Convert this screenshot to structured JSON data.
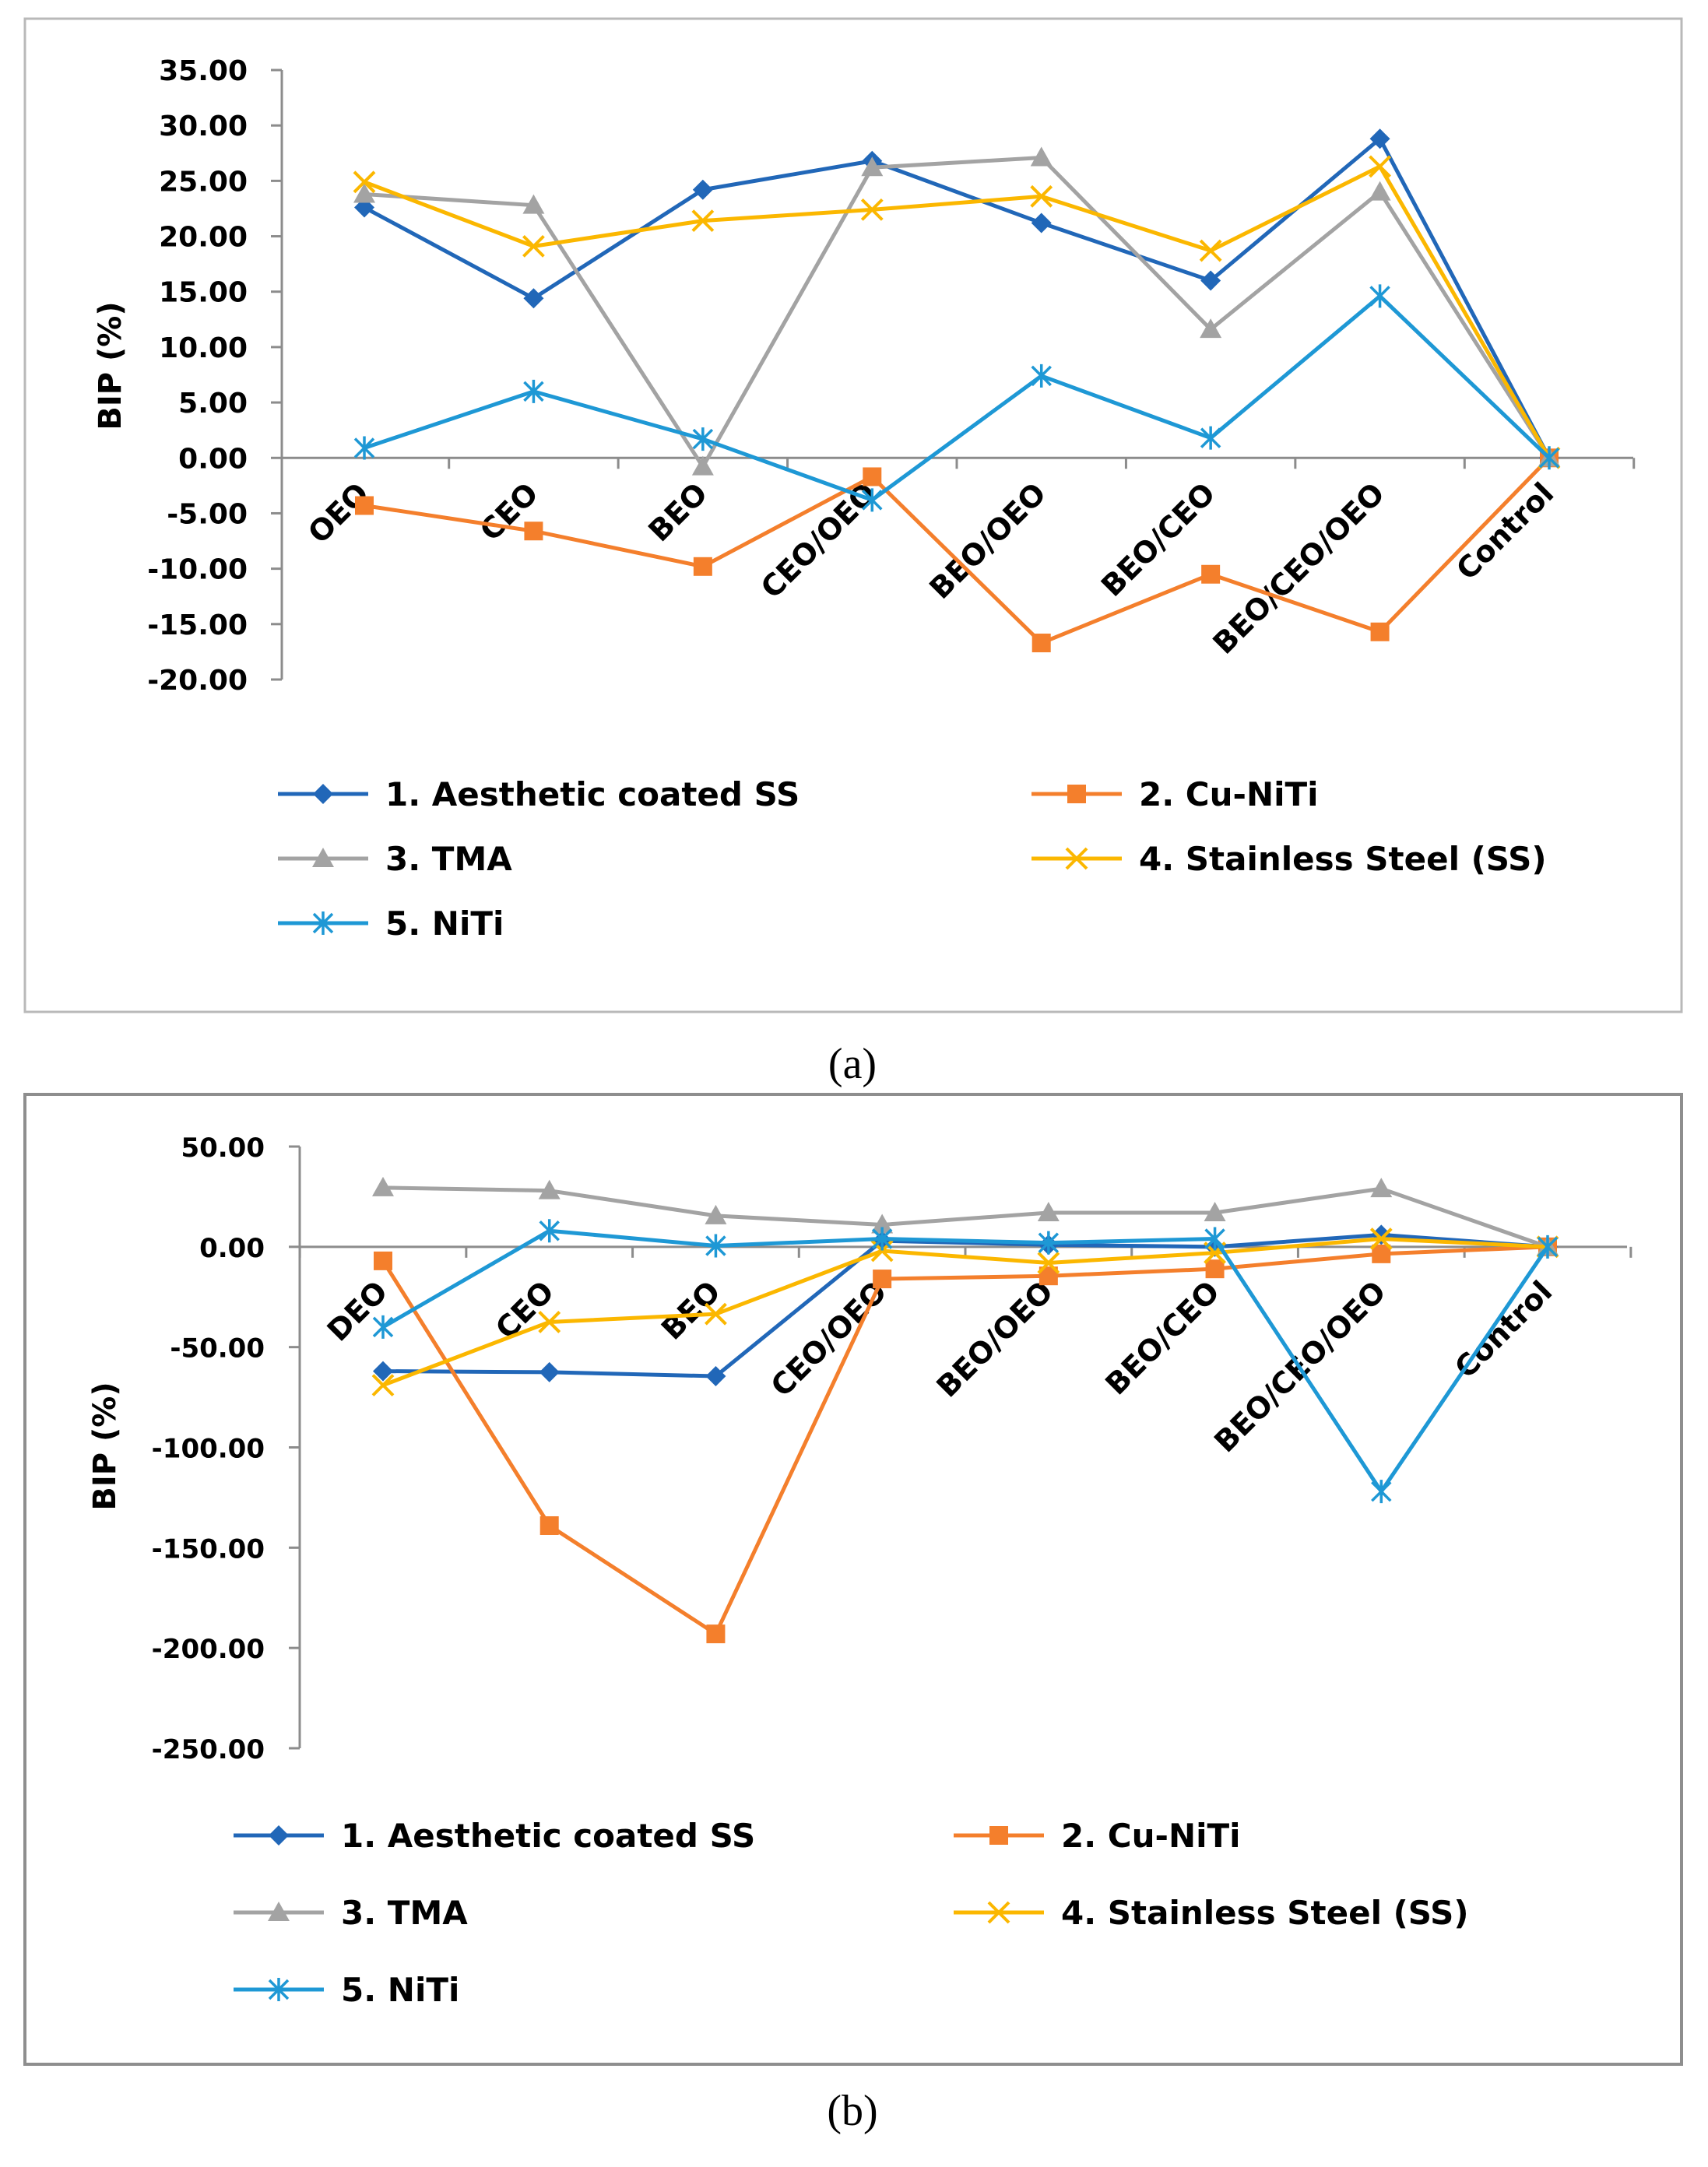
{
  "colors": {
    "aesthetic": "#2167b8",
    "cuniti": "#f47f2c",
    "tma": "#a3a3a3",
    "ss": "#fbb700",
    "niti": "#1e98d5",
    "frame_a": "#b9b9b9",
    "frame_b": "#8e8e8e",
    "axis": "#8c8c8c"
  },
  "chart_data": [
    {
      "id": "a",
      "type": "line",
      "caption": "(a)",
      "ylabel": "BIP (%)",
      "xlabel": "",
      "ylim": [
        -20,
        35
      ],
      "ytick_values": [
        35,
        30,
        25,
        20,
        15,
        10,
        5,
        0,
        -5,
        -10,
        -15,
        -20
      ],
      "ytick_labels": [
        "35.00",
        "30.00",
        "25.00",
        "20.00",
        "15.00",
        "10.00",
        "5.00",
        "0.00",
        "-5.00",
        "-10.00",
        "-15.00",
        "-20.00"
      ],
      "categories": [
        "OEO",
        "CEO",
        "BEO",
        "CEO/OEO",
        "BEO/OEO",
        "BEO/CEO",
        "BEO/CEO/OEO",
        "Control"
      ],
      "grid": false,
      "legend_position": "bottom",
      "series": [
        {
          "name": "1. Aesthetic coated SS",
          "color_key": "aesthetic",
          "marker": "diamond",
          "values": [
            22.6,
            14.4,
            24.2,
            26.8,
            21.2,
            16.0,
            28.8,
            0.0
          ]
        },
        {
          "name": "2. Cu-NiTi",
          "color_key": "cuniti",
          "marker": "square",
          "values": [
            -4.3,
            -6.6,
            -9.8,
            -1.7,
            -16.7,
            -10.5,
            -15.7,
            0.0
          ]
        },
        {
          "name": "3. TMA",
          "color_key": "tma",
          "marker": "triangle",
          "values": [
            23.8,
            22.8,
            -0.8,
            26.2,
            27.1,
            11.6,
            24.0,
            0.0
          ]
        },
        {
          "name": "4. Stainless Steel (SS)",
          "color_key": "ss",
          "marker": "x",
          "values": [
            24.9,
            19.1,
            21.4,
            22.4,
            23.6,
            18.7,
            26.3,
            0.0
          ]
        },
        {
          "name": "5. NiTi",
          "color_key": "niti",
          "marker": "star",
          "values": [
            0.9,
            6.0,
            1.7,
            -3.8,
            7.4,
            1.8,
            14.6,
            0.0
          ]
        }
      ]
    },
    {
      "id": "b",
      "type": "line",
      "caption": "(b)",
      "ylabel": "BIP (%)",
      "xlabel": "",
      "ylim": [
        -250,
        50
      ],
      "ytick_values": [
        50,
        0,
        -50,
        -100,
        -150,
        -200,
        -250
      ],
      "ytick_labels": [
        "50.00",
        "0.00",
        "-50.00",
        "-100.00",
        "-150.00",
        "-200.00",
        "-250.00"
      ],
      "categories": [
        "DEO",
        "CEO",
        "BEO",
        "CEO/OEO",
        "BEO/OEO",
        "BEO/CEO",
        "BEO/CEO/OEO",
        "Control"
      ],
      "grid": false,
      "legend_position": "bottom",
      "series": [
        {
          "name": "1. Aesthetic coated SS",
          "color_key": "aesthetic",
          "marker": "diamond",
          "values": [
            -62.0,
            -62.5,
            -64.5,
            3.0,
            1.0,
            0.0,
            6.0,
            0.0
          ]
        },
        {
          "name": "2. Cu-NiTi",
          "color_key": "cuniti",
          "marker": "square",
          "values": [
            -7.0,
            -139.0,
            -193.0,
            -16.0,
            -14.5,
            -11.0,
            -3.5,
            0.0
          ]
        },
        {
          "name": "3. TMA",
          "color_key": "tma",
          "marker": "triangle",
          "values": [
            29.5,
            28.0,
            15.5,
            11.0,
            17.0,
            17.0,
            29.0,
            0.0
          ]
        },
        {
          "name": "4. Stainless Steel (SS)",
          "color_key": "ss",
          "marker": "x",
          "values": [
            -69.0,
            -37.5,
            -33.5,
            -2.0,
            -8.0,
            -3.0,
            4.0,
            0.0
          ]
        },
        {
          "name": "5. NiTi",
          "color_key": "niti",
          "marker": "star",
          "values": [
            -40.0,
            8.0,
            0.5,
            4.0,
            2.0,
            4.0,
            -122.0,
            0.0
          ]
        }
      ]
    }
  ]
}
